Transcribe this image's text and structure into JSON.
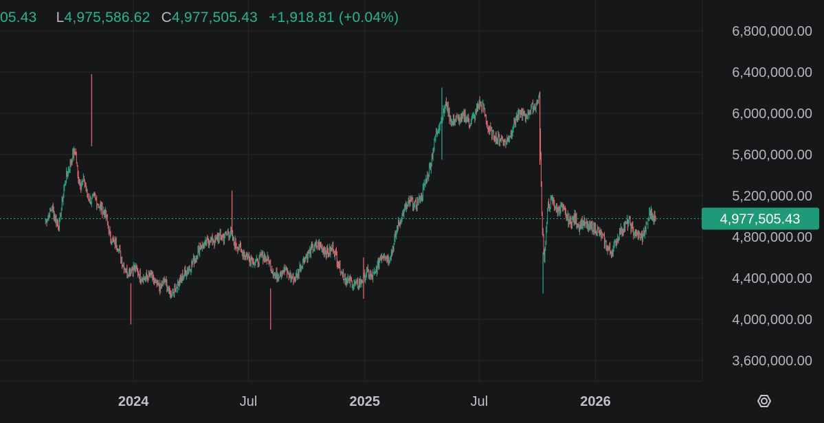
{
  "header": {
    "open_fragment": "05.43",
    "low_key": "L",
    "low_value": "4,975,586.62",
    "close_key": "C",
    "close_value": "4,977,505.43",
    "change": "+1,918.81 (+0.04%)"
  },
  "colors": {
    "background": "#161719",
    "grid": "#26282c",
    "up": "#26a285",
    "down": "#e0656d",
    "price_line": "#2ab58a",
    "price_label_bg": "#1e9a78",
    "axis_text": "#b4b6ba",
    "time_text": "#bfc1c5"
  },
  "icons": {
    "settings": "settings-hexagon-icon"
  },
  "chart_data": {
    "type": "line",
    "style": "ohlc-tick-bars",
    "y_ticks": [
      "6,800,000.00",
      "6,400,000.00",
      "6,000,000.00",
      "5,600,000.00",
      "5,200,000.00",
      "4,800,000.00",
      "4,400,000.00",
      "4,000,000.00",
      "3,600,000.00"
    ],
    "y_tick_values": [
      6800000,
      6400000,
      6000000,
      5600000,
      5200000,
      4800000,
      4400000,
      4000000,
      3600000
    ],
    "ylim": [
      3400000,
      7100000
    ],
    "x_ticks": [
      {
        "label": "2024",
        "date": "2024-01-01",
        "bold": true
      },
      {
        "label": "Jul",
        "date": "2024-07-01",
        "bold": false
      },
      {
        "label": "2025",
        "date": "2025-01-01",
        "bold": true
      },
      {
        "label": "Jul",
        "date": "2025-07-01",
        "bold": false
      },
      {
        "label": "2026",
        "date": "2026-01-01",
        "bold": true
      }
    ],
    "xlim": [
      "2023-06-04",
      "2026-06-19"
    ],
    "last_price": 4977505.43,
    "last_price_label": "4,977,505.43",
    "grid": true,
    "series": [
      {
        "points": [
          [
            "2023-08-15",
            4950000
          ],
          [
            "2023-08-25",
            5080000
          ],
          [
            "2023-09-05",
            4900000
          ],
          [
            "2023-09-15",
            5350000
          ],
          [
            "2023-09-25",
            5550000
          ],
          [
            "2023-10-01",
            5650000
          ],
          [
            "2023-10-05",
            5400000
          ],
          [
            "2023-10-10",
            5300000
          ],
          [
            "2023-10-15",
            5350000
          ],
          [
            "2023-10-20",
            5200000
          ],
          [
            "2023-10-25",
            5150000
          ],
          [
            "2023-11-01",
            5180000
          ],
          [
            "2023-11-08",
            5100000
          ],
          [
            "2023-11-15",
            5050000
          ],
          [
            "2023-11-20",
            4980000
          ],
          [
            "2023-11-25",
            4800000
          ],
          [
            "2023-12-01",
            4750000
          ],
          [
            "2023-12-08",
            4700000
          ],
          [
            "2023-12-15",
            4550000
          ],
          [
            "2023-12-22",
            4450000
          ],
          [
            "2023-12-29",
            4500000
          ],
          [
            "2024-01-05",
            4480000
          ],
          [
            "2024-01-12",
            4420000
          ],
          [
            "2024-01-20",
            4400000
          ],
          [
            "2024-01-28",
            4430000
          ],
          [
            "2024-02-05",
            4350000
          ],
          [
            "2024-02-12",
            4300000
          ],
          [
            "2024-02-20",
            4370000
          ],
          [
            "2024-02-28",
            4250000
          ],
          [
            "2024-03-07",
            4300000
          ],
          [
            "2024-03-15",
            4380000
          ],
          [
            "2024-03-22",
            4450000
          ],
          [
            "2024-03-30",
            4500000
          ],
          [
            "2024-04-08",
            4600000
          ],
          [
            "2024-04-15",
            4700000
          ],
          [
            "2024-04-22",
            4720000
          ],
          [
            "2024-05-01",
            4780000
          ],
          [
            "2024-05-08",
            4760000
          ],
          [
            "2024-05-15",
            4800000
          ],
          [
            "2024-05-22",
            4790000
          ],
          [
            "2024-06-01",
            4850000
          ],
          [
            "2024-06-08",
            4750000
          ],
          [
            "2024-06-15",
            4700000
          ],
          [
            "2024-06-22",
            4650000
          ],
          [
            "2024-07-01",
            4600000
          ],
          [
            "2024-07-08",
            4580000
          ],
          [
            "2024-07-15",
            4550000
          ],
          [
            "2024-07-22",
            4620000
          ],
          [
            "2024-08-01",
            4580000
          ],
          [
            "2024-08-06",
            4500000
          ],
          [
            "2024-08-12",
            4420000
          ],
          [
            "2024-08-20",
            4450000
          ],
          [
            "2024-08-28",
            4480000
          ],
          [
            "2024-09-05",
            4420000
          ],
          [
            "2024-09-12",
            4380000
          ],
          [
            "2024-09-20",
            4500000
          ],
          [
            "2024-09-28",
            4600000
          ],
          [
            "2024-10-05",
            4650000
          ],
          [
            "2024-10-12",
            4700000
          ],
          [
            "2024-10-20",
            4720000
          ],
          [
            "2024-10-28",
            4680000
          ],
          [
            "2024-11-05",
            4650000
          ],
          [
            "2024-11-12",
            4700000
          ],
          [
            "2024-11-20",
            4550000
          ],
          [
            "2024-11-28",
            4420000
          ],
          [
            "2024-12-05",
            4380000
          ],
          [
            "2024-12-12",
            4350000
          ],
          [
            "2024-12-20",
            4330000
          ],
          [
            "2024-12-28",
            4380000
          ],
          [
            "2025-01-05",
            4450000
          ],
          [
            "2025-01-12",
            4400000
          ],
          [
            "2025-01-18",
            4450000
          ],
          [
            "2025-01-25",
            4600000
          ],
          [
            "2025-02-01",
            4630000
          ],
          [
            "2025-02-08",
            4580000
          ],
          [
            "2025-02-15",
            4700000
          ],
          [
            "2025-02-22",
            4900000
          ],
          [
            "2025-03-01",
            5000000
          ],
          [
            "2025-03-08",
            5100000
          ],
          [
            "2025-03-15",
            5150000
          ],
          [
            "2025-03-22",
            5100000
          ],
          [
            "2025-04-01",
            5200000
          ],
          [
            "2025-04-08",
            5350000
          ],
          [
            "2025-04-15",
            5500000
          ],
          [
            "2025-04-22",
            5750000
          ],
          [
            "2025-04-29",
            5900000
          ],
          [
            "2025-05-05",
            6000000
          ],
          [
            "2025-05-10",
            6100000
          ],
          [
            "2025-05-18",
            5900000
          ],
          [
            "2025-05-25",
            5950000
          ],
          [
            "2025-06-01",
            5930000
          ],
          [
            "2025-06-08",
            5980000
          ],
          [
            "2025-06-15",
            5900000
          ],
          [
            "2025-06-22",
            5950000
          ],
          [
            "2025-07-01",
            6100000
          ],
          [
            "2025-07-08",
            6050000
          ],
          [
            "2025-07-15",
            5850000
          ],
          [
            "2025-07-22",
            5800000
          ],
          [
            "2025-07-29",
            5750000
          ],
          [
            "2025-08-05",
            5750000
          ],
          [
            "2025-08-12",
            5720000
          ],
          [
            "2025-08-20",
            5800000
          ],
          [
            "2025-08-28",
            5950000
          ],
          [
            "2025-09-05",
            6000000
          ],
          [
            "2025-09-12",
            5950000
          ],
          [
            "2025-09-20",
            6050000
          ],
          [
            "2025-09-28",
            6080000
          ],
          [
            "2025-10-04",
            6150000
          ],
          [
            "2025-10-08",
            5000000
          ],
          [
            "2025-10-12",
            4600000
          ],
          [
            "2025-10-18",
            5100000
          ],
          [
            "2025-10-25",
            5150000
          ],
          [
            "2025-11-01",
            5050000
          ],
          [
            "2025-11-08",
            5100000
          ],
          [
            "2025-11-15",
            5000000
          ],
          [
            "2025-11-22",
            4950000
          ],
          [
            "2025-11-29",
            4980000
          ],
          [
            "2025-12-06",
            4900000
          ],
          [
            "2025-12-13",
            4950000
          ],
          [
            "2025-12-20",
            4880000
          ],
          [
            "2025-12-27",
            4900000
          ],
          [
            "2026-01-05",
            4850000
          ],
          [
            "2026-01-12",
            4800000
          ],
          [
            "2026-01-19",
            4700000
          ],
          [
            "2026-01-26",
            4650000
          ],
          [
            "2026-02-02",
            4750000
          ],
          [
            "2026-02-09",
            4850000
          ],
          [
            "2026-02-16",
            4900000
          ],
          [
            "2026-02-23",
            4950000
          ],
          [
            "2026-03-02",
            4850000
          ],
          [
            "2026-03-09",
            4820000
          ],
          [
            "2026-03-16",
            4800000
          ],
          [
            "2026-03-23",
            4900000
          ],
          [
            "2026-03-28",
            5050000
          ],
          [
            "2026-04-02",
            5000000
          ],
          [
            "2026-04-06",
            4977505
          ]
        ],
        "spikes": [
          [
            "2023-10-27",
            6380000,
            "down"
          ],
          [
            "2023-12-28",
            3950000,
            "down"
          ],
          [
            "2024-06-05",
            4850000,
            "down"
          ],
          [
            "2024-08-05",
            3900000,
            "down"
          ],
          [
            "2024-12-30",
            4200000,
            "down"
          ],
          [
            "2025-05-03",
            6250000,
            "up"
          ],
          [
            "2025-10-05",
            6200000,
            "down"
          ],
          [
            "2025-10-10",
            4250000,
            "up"
          ]
        ]
      }
    ]
  }
}
